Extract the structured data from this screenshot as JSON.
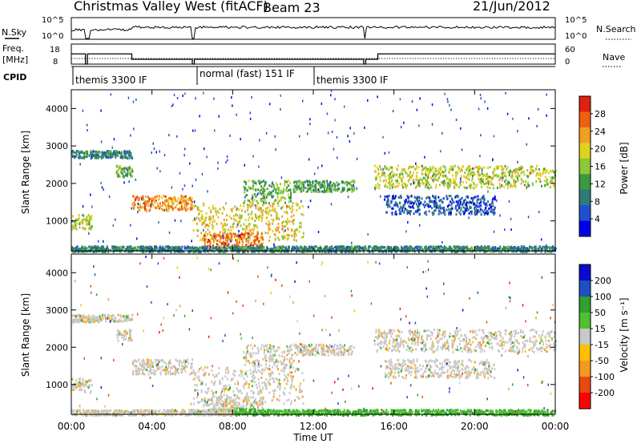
{
  "header": {
    "title": "Christmas Valley West (fitACF)",
    "beam": "Beam 23",
    "date": "21/Jun/2012"
  },
  "panels": {
    "nsky_label": "N.Sky",
    "nsearch_label": "N.Search",
    "nsky_ticks": [
      "10^5",
      "10^0"
    ],
    "nsearch_ticks": [
      "10^5",
      "10^0"
    ],
    "freq_label_line1": "Freq.",
    "freq_label_line2": "[MHz]",
    "freq_ticks": [
      "18",
      "8"
    ],
    "nave_label": "Nave",
    "nave_ticks": [
      "60",
      "0"
    ],
    "cpid_label": "CPID",
    "cpid_segments": [
      "themis 3300 IF",
      "normal (fast) 151 IF",
      "themis 3300 IF"
    ]
  },
  "axes": {
    "ylabel": "Slant Range [km]",
    "yticks": [
      "4000",
      "3000",
      "2000",
      "1000"
    ],
    "xlabel": "Time UT",
    "xticks": [
      "00:00",
      "04:00",
      "08:00",
      "12:00",
      "16:00",
      "20:00",
      "00:00"
    ]
  },
  "colorbars": {
    "power_label": "Power [dB]",
    "power_ticks": [
      "28",
      "24",
      "20",
      "16",
      "12",
      "8",
      "4"
    ],
    "velocity_label": "Velocity [m s⁻¹]",
    "velocity_ticks": [
      "200",
      "100",
      "50",
      "15",
      "-15",
      "-50",
      "-100",
      "-200"
    ],
    "power_colors": [
      "#0000e6",
      "#1f4fd0",
      "#2f7a78",
      "#3a9a40",
      "#8cc83a",
      "#e0d020",
      "#f0a020",
      "#f06010",
      "#e02010"
    ],
    "velocity_colors": [
      "#ff0000",
      "#e64a10",
      "#f59a20",
      "#ffc000",
      "#c8c8c8",
      "#50c030",
      "#30a030",
      "#1e50c0",
      "#0a0ad0"
    ]
  },
  "chart_data": {
    "type": "heatmap",
    "xlabel": "Time UT",
    "ylabel": "Slant Range [km]",
    "xlim": [
      0,
      24
    ],
    "ylim": [
      200,
      4500
    ],
    "power_range_db": [
      0,
      32
    ],
    "velocity_range_ms": [
      -250,
      250
    ],
    "power_echo_bands": [
      {
        "t": [
          0.0,
          3.0
        ],
        "range_km": [
          2700,
          2900
        ],
        "power_db": 10
      },
      {
        "t": [
          2.2,
          3.0
        ],
        "range_km": [
          2200,
          2500
        ],
        "power_db": 14
      },
      {
        "t": [
          0.0,
          1.0
        ],
        "range_km": [
          800,
          1200
        ],
        "power_db": 18
      },
      {
        "t": [
          3.0,
          6.0
        ],
        "range_km": [
          1300,
          1700
        ],
        "power_db": 24
      },
      {
        "t": [
          6.0,
          11.5
        ],
        "range_km": [
          500,
          1500
        ],
        "power_db": 20
      },
      {
        "t": [
          6.5,
          9.5
        ],
        "range_km": [
          300,
          700
        ],
        "power_db": 26
      },
      {
        "t": [
          8.5,
          11.0
        ],
        "range_km": [
          1500,
          2100
        ],
        "power_db": 14
      },
      {
        "t": [
          11.0,
          14.0
        ],
        "range_km": [
          1800,
          2100
        ],
        "power_db": 12
      },
      {
        "t": [
          15.0,
          24.0
        ],
        "range_km": [
          1900,
          2500
        ],
        "power_db": 18
      },
      {
        "t": [
          15.5,
          21.0
        ],
        "range_km": [
          1200,
          1700
        ],
        "power_db": 6
      },
      {
        "t": [
          0.0,
          24.0
        ],
        "range_km": [
          200,
          350
        ],
        "power_db": 10
      }
    ],
    "velocity_echo_bands": [
      {
        "t": [
          0.0,
          3.0
        ],
        "range_km": [
          2700,
          2900
        ],
        "velocity_ms": 0
      },
      {
        "t": [
          3.0,
          6.0
        ],
        "range_km": [
          1300,
          1700
        ],
        "velocity_ms": -30
      },
      {
        "t": [
          6.0,
          11.5
        ],
        "range_km": [
          500,
          1500
        ],
        "velocity_ms": 0
      },
      {
        "t": [
          15.0,
          24.0
        ],
        "range_km": [
          1900,
          2500
        ],
        "velocity_ms": 0
      },
      {
        "t": [
          8.0,
          24.0
        ],
        "range_km": [
          200,
          400
        ],
        "velocity_ms": 40
      }
    ]
  }
}
